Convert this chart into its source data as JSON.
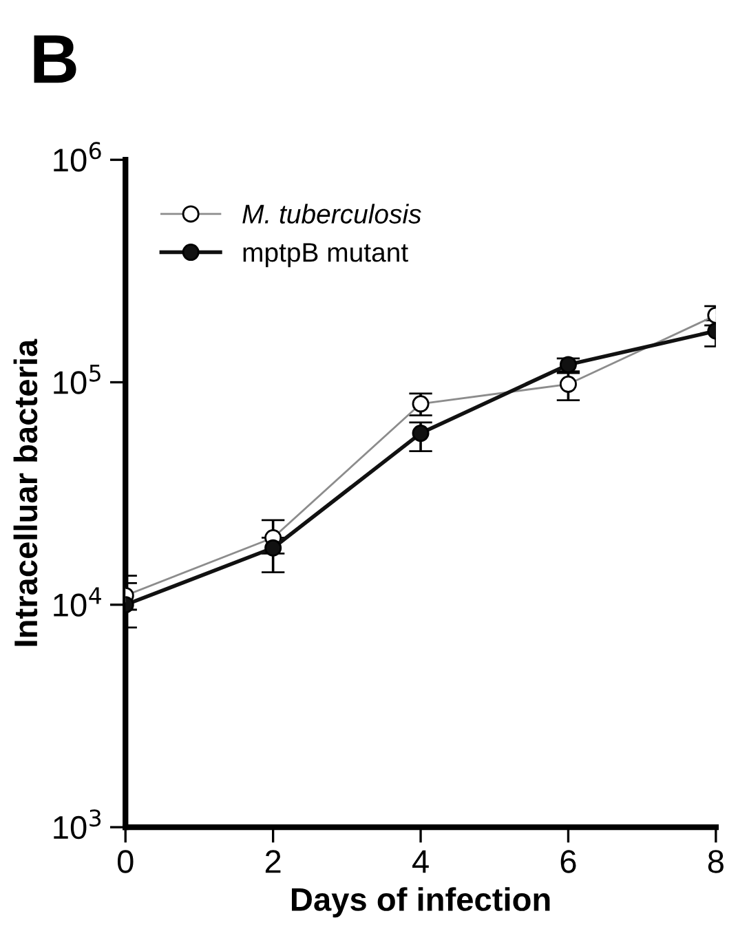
{
  "chart_data": {
    "type": "line",
    "title": "B",
    "xlabel": "Days of infection",
    "ylabel": "Intracelluar bacteria",
    "x": [
      0,
      2,
      4,
      6,
      8
    ],
    "series": [
      {
        "name": "M. tuberculosis",
        "color": "#8c8c8c",
        "marker": "circle",
        "values": [
          11000,
          20000,
          80000,
          98000,
          200000
        ],
        "errors": [
          [
            9500,
            13500
          ],
          [
            17000,
            24000
          ],
          [
            71000,
            89000
          ],
          [
            83000,
            110000
          ],
          [
            180000,
            220000
          ]
        ]
      },
      {
        "name": "mptpB mutant",
        "color": "#111111",
        "marker": "circle",
        "values": [
          10000,
          18000,
          59000,
          120000,
          170000
        ],
        "errors": [
          [
            7900,
            12500
          ],
          [
            14000,
            20000
          ],
          [
            49000,
            66000
          ],
          [
            112000,
            128000
          ],
          [
            145000,
            190000
          ]
        ]
      }
    ],
    "log": "y",
    "xlim": [
      0,
      8
    ],
    "xticks": [
      0,
      2,
      4,
      6,
      8
    ],
    "ylim": [
      1000,
      1000000
    ],
    "yticks": [
      {
        "value": 1000,
        "label": "10$^{3}$"
      },
      {
        "value": 10000,
        "label": "10$^{4}$"
      },
      {
        "value": 100000,
        "label": "10$^{5}$"
      },
      {
        "value": 1000000,
        "label": "10$^{6}$"
      }
    ],
    "legend": "top left",
    "grid": false
  }
}
